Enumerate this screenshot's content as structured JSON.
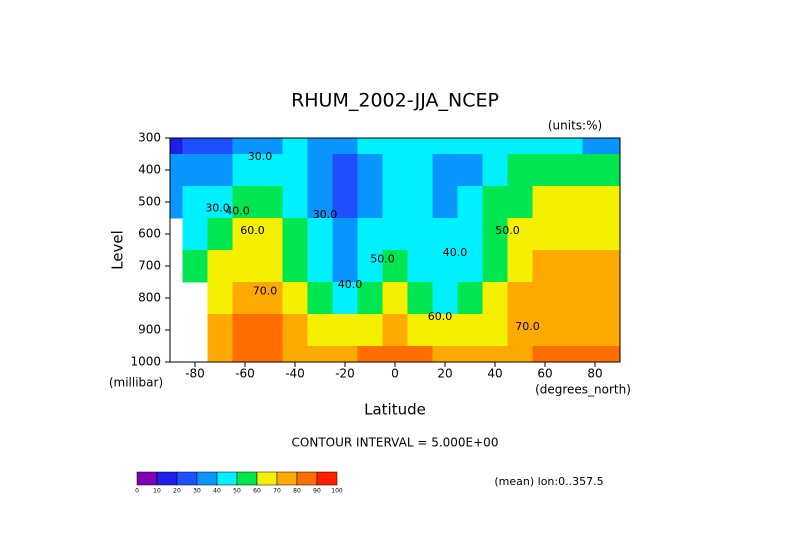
{
  "chart_data": {
    "type": "contour",
    "title": "RHUM_2002-JJA_NCEP",
    "units_label": "(units:%)",
    "x_label": "Latitude",
    "x_units": "(degrees_north)",
    "y_label": "Level",
    "y_units": "(millibar)",
    "footer": "CONTOUR INTERVAL = 5.000E+00",
    "mean_note": "(mean) lon:0..357.5",
    "xlim": [
      -90,
      90
    ],
    "xticks": [
      -80,
      -60,
      -40,
      -20,
      0,
      20,
      40,
      60,
      80
    ],
    "ylim": [
      300,
      1000
    ],
    "y_reversed": true,
    "yticks": [
      300,
      400,
      500,
      600,
      700,
      800,
      900,
      1000
    ],
    "x": [
      -90,
      -80,
      -70,
      -60,
      -50,
      -40,
      -30,
      -20,
      -10,
      0,
      10,
      20,
      30,
      40,
      50,
      60,
      70,
      80,
      90
    ],
    "y": [
      300,
      400,
      500,
      600,
      700,
      800,
      900,
      1000
    ],
    "z": [
      [
        15,
        20,
        25,
        30,
        35,
        40,
        35,
        30,
        40,
        45,
        45,
        40,
        40,
        45,
        45,
        45,
        40,
        35,
        35
      ],
      [
        35,
        35,
        35,
        40,
        45,
        45,
        30,
        25,
        35,
        45,
        40,
        30,
        35,
        45,
        55,
        55,
        55,
        50,
        50
      ],
      [
        35,
        40,
        45,
        50,
        50,
        45,
        35,
        25,
        35,
        45,
        40,
        35,
        40,
        50,
        55,
        60,
        60,
        60,
        60
      ],
      [
        null,
        45,
        55,
        60,
        60,
        50,
        40,
        30,
        40,
        45,
        40,
        40,
        45,
        55,
        60,
        65,
        65,
        65,
        65
      ],
      [
        null,
        50,
        60,
        65,
        65,
        55,
        45,
        35,
        45,
        50,
        45,
        40,
        45,
        55,
        65,
        70,
        70,
        70,
        70
      ],
      [
        null,
        null,
        65,
        75,
        70,
        60,
        50,
        45,
        55,
        60,
        55,
        45,
        50,
        60,
        70,
        75,
        75,
        75,
        75
      ],
      [
        null,
        null,
        70,
        80,
        80,
        70,
        60,
        60,
        65,
        70,
        65,
        60,
        60,
        65,
        70,
        75,
        75,
        75,
        75
      ],
      [
        null,
        null,
        75,
        85,
        80,
        75,
        75,
        75,
        80,
        80,
        80,
        75,
        75,
        75,
        75,
        80,
        80,
        80,
        80
      ]
    ],
    "levels": [
      0,
      10,
      20,
      30,
      40,
      50,
      60,
      70,
      80,
      90,
      100
    ],
    "colors": [
      "#8200b4",
      "#1e1ee6",
      "#1e50ff",
      "#0a96ff",
      "#00f0ff",
      "#00e650",
      "#f5f000",
      "#ffaa00",
      "#ff6e00",
      "#ff1e00"
    ],
    "contour_labels": [
      {
        "text": "30.0",
        "x": -54,
        "y": 360
      },
      {
        "text": "30.0",
        "x": -71,
        "y": 520
      },
      {
        "text": "40.0",
        "x": -63,
        "y": 530
      },
      {
        "text": "60.0",
        "x": -57,
        "y": 590
      },
      {
        "text": "70.0",
        "x": -52,
        "y": 780
      },
      {
        "text": "30.0",
        "x": -28,
        "y": 540
      },
      {
        "text": "40.0",
        "x": -18,
        "y": 760
      },
      {
        "text": "50.0",
        "x": -5,
        "y": 680
      },
      {
        "text": "40.0",
        "x": 24,
        "y": 660
      },
      {
        "text": "50.0",
        "x": 45,
        "y": 590
      },
      {
        "text": "60.0",
        "x": 18,
        "y": 860
      },
      {
        "text": "70.0",
        "x": 53,
        "y": 890
      }
    ]
  }
}
